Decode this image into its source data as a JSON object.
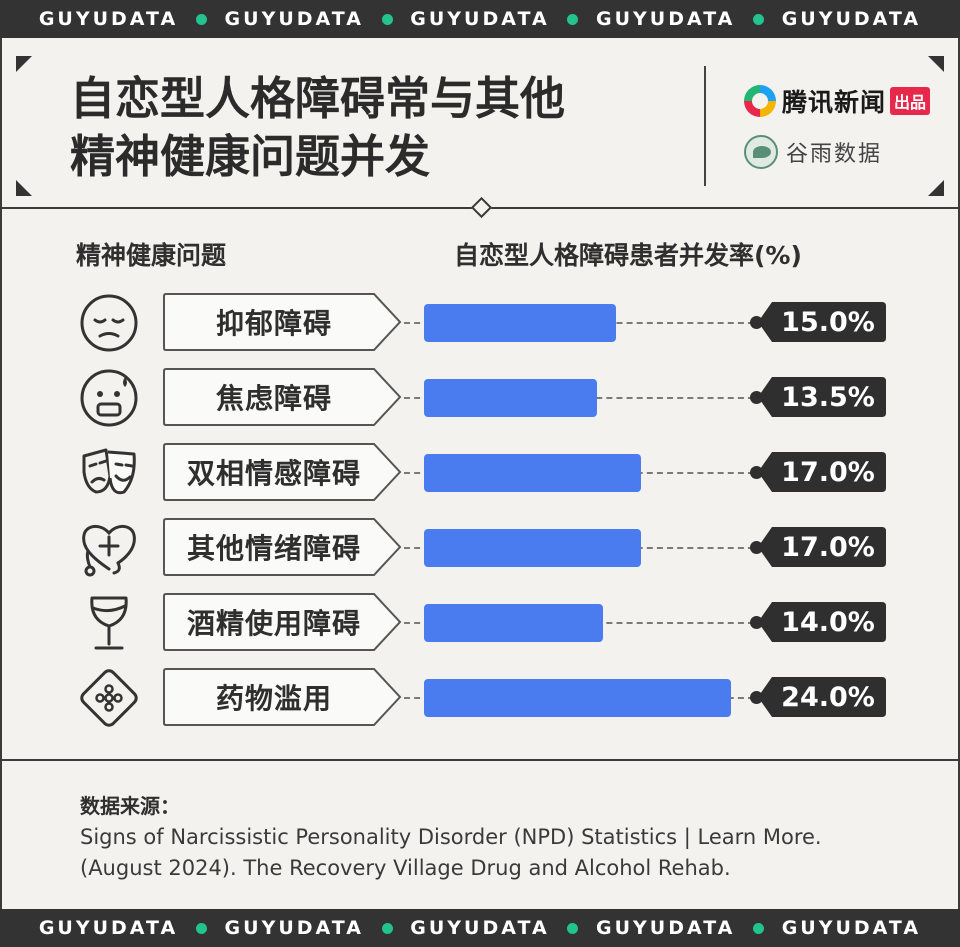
{
  "brand_band": {
    "items": [
      "GUYUDATA",
      "GUYUDATA",
      "GUYUDATA",
      "GUYUDATA",
      "GUYUDATA"
    ],
    "dot_color": "#22c38e"
  },
  "header": {
    "title_line1": "自恋型人格障碍常与其他",
    "title_line2": "精神健康问题并发",
    "logo_primary": "腾讯新闻",
    "logo_primary_badge": "出品",
    "logo_secondary": "谷雨数据"
  },
  "columns": {
    "left": "精神健康问题",
    "right": "自恋型人格障碍患者并发率(%)"
  },
  "chart_data": {
    "type": "bar",
    "orientation": "horizontal",
    "categories": [
      "抑郁障碍",
      "焦虑障碍",
      "双相情感障碍",
      "其他情绪障碍",
      "酒精使用障碍",
      "药物滥用"
    ],
    "values": [
      15.0,
      13.5,
      17.0,
      17.0,
      14.0,
      24.0
    ],
    "value_labels": [
      "15.0%",
      "13.5%",
      "17.0%",
      "17.0%",
      "14.0%",
      "24.0%"
    ],
    "icons": [
      "sad-face-icon",
      "anxious-face-icon",
      "theater-masks-icon",
      "heart-stethoscope-icon",
      "wine-glass-icon",
      "pill-pack-icon"
    ],
    "title": "",
    "xlabel": "",
    "ylabel": "",
    "bar_color": "#4a7cf0"
  },
  "source": {
    "heading": "数据来源：",
    "line1": "Signs of Narcissistic Personality Disorder (NPD) Statistics | Learn More.",
    "line2": "(August 2024). The Recovery Village Drug and Alcohol Rehab."
  }
}
